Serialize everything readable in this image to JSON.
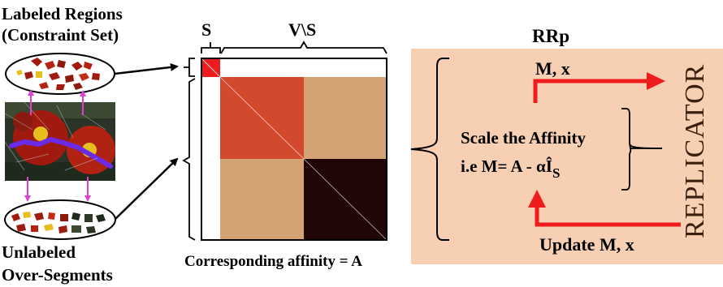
{
  "left": {
    "labeled_title_line1": "Labeled Regions",
    "labeled_title_line2": "(Constraint Set)",
    "unlabeled_title_line1": "Unlabeled",
    "unlabeled_title_line2": "Over-Segments"
  },
  "matrix": {
    "s_label": "S",
    "vs_label": "V\\S",
    "caption": "Corresponding affinity = A"
  },
  "replicator": {
    "title": "RRp",
    "input_label": "M, x",
    "scale_line1": "Scale the Affinity",
    "scale_line2": "i.e   M= A - αÎ",
    "scale_sub": "S",
    "update_label": "Update M, x",
    "side_label": "REPLICATOR"
  },
  "colors": {
    "panel_bg": "#f7cfb3",
    "arrow_red": "#ee1c1c",
    "block_red": "#d2492e",
    "block_tan": "#d3a275",
    "block_dark": "#200607",
    "flower_red": "#a01a10",
    "flower_yellow": "#e6bf1e",
    "purple_line": "#6a2ae8",
    "pink_arrow": "#e040d0"
  }
}
